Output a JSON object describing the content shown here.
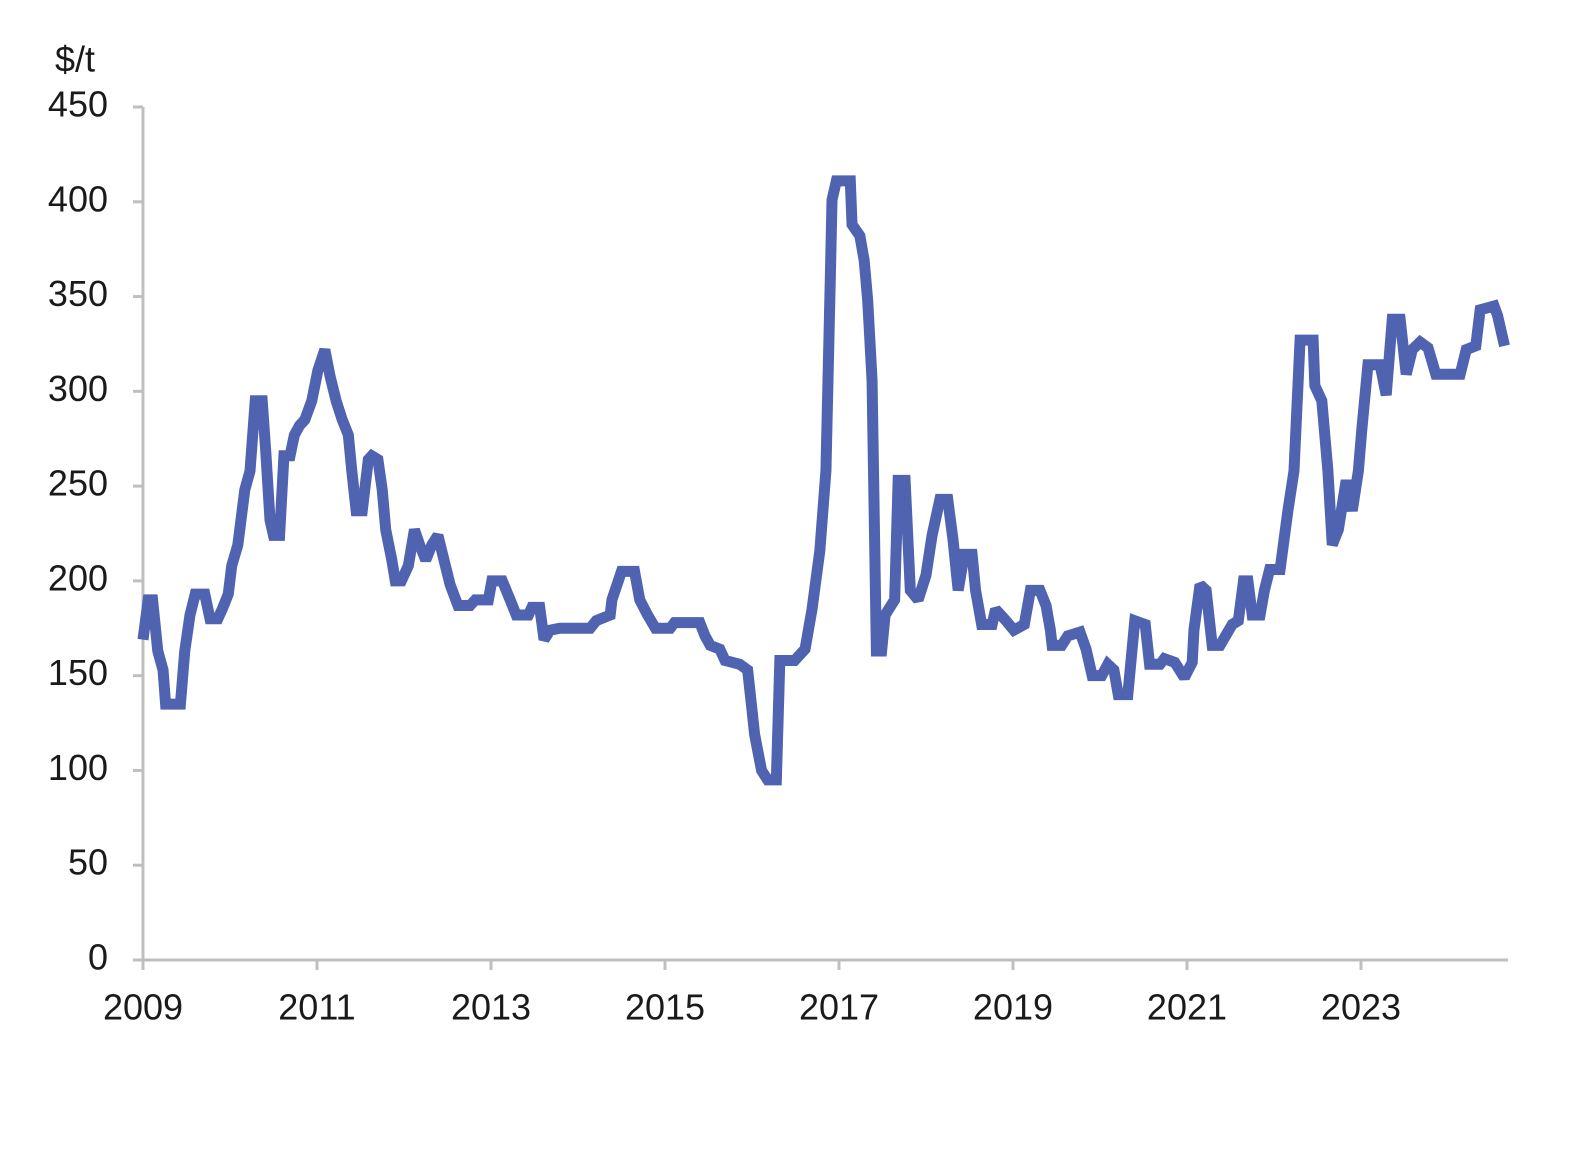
{
  "chart_data": {
    "type": "line",
    "y_label": "$/t",
    "color": "#4f63b0",
    "xlim": [
      2009,
      2024.69
    ],
    "xticks": [
      2009,
      2011,
      2013,
      2015,
      2017,
      2019,
      2021,
      2023
    ],
    "ylim": [
      0,
      450
    ],
    "yticks": [
      0,
      50,
      100,
      150,
      200,
      250,
      300,
      350,
      400,
      450
    ],
    "grid": false,
    "x": [
      2009.0,
      2009.06,
      2009.11,
      2009.17,
      2009.23,
      2009.26,
      2009.43,
      2009.48,
      2009.54,
      2009.6,
      2009.71,
      2009.77,
      2009.86,
      2009.91,
      2009.98,
      2010.02,
      2010.09,
      2010.17,
      2010.23,
      2010.29,
      2010.37,
      2010.41,
      2010.46,
      2010.5,
      2010.57,
      2010.62,
      2010.69,
      2010.74,
      2010.8,
      2010.86,
      2010.94,
      2011.01,
      2011.09,
      2011.15,
      2011.22,
      2011.29,
      2011.36,
      2011.4,
      2011.45,
      2011.52,
      2011.59,
      2011.63,
      2011.7,
      2011.75,
      2011.79,
      2011.86,
      2011.9,
      2011.97,
      2012.05,
      2012.12,
      2012.18,
      2012.25,
      2012.32,
      2012.39,
      2012.46,
      2012.53,
      2012.62,
      2012.76,
      2012.82,
      2012.97,
      2013.01,
      2013.13,
      2013.22,
      2013.29,
      2013.43,
      2013.47,
      2013.56,
      2013.61,
      2013.68,
      2013.79,
      2014.14,
      2014.21,
      2014.37,
      2014.39,
      2014.5,
      2014.65,
      2014.71,
      2014.8,
      2014.89,
      2015.06,
      2015.11,
      2015.4,
      2015.46,
      2015.52,
      2015.63,
      2015.69,
      2015.86,
      2015.95,
      2016.0,
      2016.03,
      2016.11,
      2016.18,
      2016.28,
      2016.32,
      2016.49,
      2016.61,
      2016.69,
      2016.78,
      2016.85,
      2016.9,
      2016.92,
      2016.97,
      2017.13,
      2017.15,
      2017.24,
      2017.29,
      2017.33,
      2017.38,
      2017.43,
      2017.49,
      2017.53,
      2017.64,
      2017.68,
      2017.76,
      2017.82,
      2017.91,
      2018.0,
      2018.07,
      2018.16,
      2018.25,
      2018.31,
      2018.37,
      2018.44,
      2018.53,
      2018.57,
      2018.64,
      2018.76,
      2018.8,
      2018.92,
      2019.01,
      2019.13,
      2019.2,
      2019.31,
      2019.38,
      2019.43,
      2019.45,
      2019.56,
      2019.63,
      2019.77,
      2019.84,
      2019.91,
      2020.02,
      2020.09,
      2020.16,
      2020.21,
      2020.32,
      2020.4,
      2020.52,
      2020.57,
      2020.69,
      2020.74,
      2020.86,
      2020.97,
      2021.06,
      2021.08,
      2021.15,
      2021.22,
      2021.29,
      2021.38,
      2021.52,
      2021.59,
      2021.65,
      2021.7,
      2021.75,
      2021.84,
      2021.89,
      2021.95,
      2022.07,
      2022.16,
      2022.23,
      2022.3,
      2022.45,
      2022.47,
      2022.55,
      2022.62,
      2022.67,
      2022.74,
      2022.83,
      2022.9,
      2022.97,
      2023.01,
      2023.08,
      2023.22,
      2023.29,
      2023.36,
      2023.45,
      2023.52,
      2023.59,
      2023.68,
      2023.77,
      2023.86,
      2024.14,
      2024.21,
      2024.32,
      2024.37,
      2024.53,
      2024.57,
      2024.65
    ],
    "values": [
      169,
      190,
      190,
      163,
      153,
      135,
      135,
      163,
      182,
      193,
      193,
      180,
      180,
      185,
      193,
      208,
      219,
      248,
      258,
      295,
      295,
      269,
      232,
      224,
      224,
      266,
      266,
      277,
      282,
      285,
      295,
      311,
      322,
      308,
      295,
      285,
      277,
      258,
      237,
      237,
      264,
      266,
      264,
      248,
      227,
      211,
      200,
      200,
      208,
      227,
      219,
      211,
      219,
      224,
      211,
      198,
      187,
      187,
      190,
      190,
      200,
      200,
      190,
      182,
      182,
      186,
      186,
      169,
      174,
      175,
      175,
      179,
      182,
      190,
      205,
      205,
      190,
      182,
      175,
      175,
      178,
      178,
      171,
      166,
      164,
      158,
      156,
      153,
      132,
      119,
      100,
      95,
      95,
      158,
      158,
      164,
      185,
      216,
      258,
      359,
      401,
      411,
      411,
      388,
      382,
      369,
      348,
      306,
      163,
      163,
      182,
      190,
      253,
      253,
      195,
      190,
      203,
      224,
      243,
      243,
      222,
      195,
      214,
      214,
      195,
      177,
      177,
      185,
      179,
      174,
      177,
      195,
      195,
      187,
      174,
      166,
      166,
      171,
      173,
      164,
      150,
      150,
      156,
      153,
      140,
      140,
      179,
      177,
      156,
      156,
      159,
      157,
      149,
      157,
      174,
      198,
      195,
      166,
      166,
      177,
      179,
      200,
      200,
      182,
      182,
      195,
      206,
      206,
      237,
      258,
      327,
      327,
      303,
      295,
      258,
      219,
      227,
      253,
      237,
      258,
      280,
      314,
      314,
      298,
      338,
      338,
      309,
      322,
      326,
      323,
      309,
      309,
      322,
      324,
      343,
      345,
      340,
      324
    ]
  }
}
